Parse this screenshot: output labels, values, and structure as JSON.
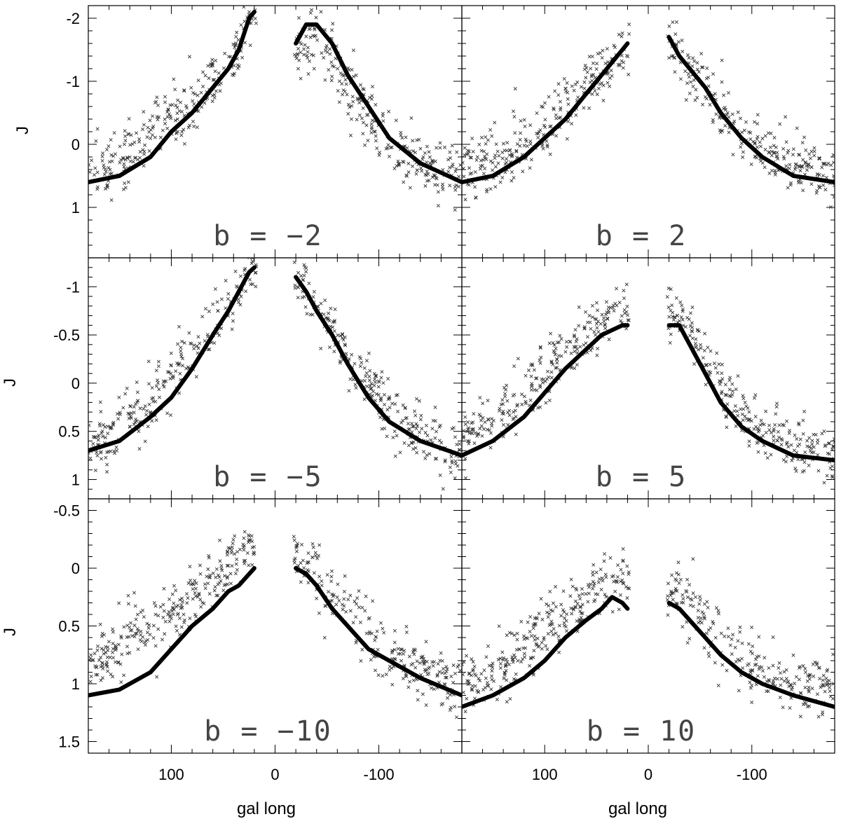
{
  "chart_data": {
    "type": "scatter",
    "xlabel": "gal long",
    "ylabel": "J",
    "x_ticks": [
      "100",
      "0",
      "-100"
    ],
    "xlim": [
      180,
      -180
    ],
    "x_axis": "reversed (galactic longitude decreasing to the right)",
    "y_axis": "inverted (J increases downward)",
    "layout": "3 rows x 2 columns, shared axes",
    "panels": [
      {
        "label": "b = −2",
        "ylim": [
          1.8,
          -2.2
        ],
        "y_ticks": [
          "-2",
          "-1",
          "0",
          "1"
        ],
        "y_tick_values": [
          -2,
          -1,
          0,
          1
        ],
        "model_left": {
          "x": [
            180,
            150,
            120,
            100,
            80,
            60,
            45,
            35,
            25,
            20
          ],
          "y": [
            0.6,
            0.5,
            0.2,
            -0.2,
            -0.5,
            -0.9,
            -1.2,
            -1.5,
            -2.0,
            -2.1
          ]
        },
        "model_right": {
          "x": [
            -20,
            -30,
            -40,
            -55,
            -70,
            -90,
            -110,
            -140,
            -180
          ],
          "y": [
            -1.6,
            -1.9,
            -1.9,
            -1.6,
            -1.1,
            -0.6,
            -0.1,
            0.3,
            0.6
          ]
        },
        "scatter_center": {
          "x": [
            180,
            150,
            120,
            100,
            80,
            60,
            45,
            35,
            25,
            -25,
            -40,
            -55,
            -70,
            -90,
            -110,
            -140,
            -180
          ],
          "y": [
            0.4,
            0.3,
            -0.1,
            -0.4,
            -0.6,
            -1.0,
            -1.3,
            -1.6,
            -2.0,
            -1.5,
            -1.8,
            -1.4,
            -1.0,
            -0.5,
            0.0,
            0.3,
            0.5
          ]
        }
      },
      {
        "label": "b = 2",
        "ylim": [
          1.8,
          -2.2
        ],
        "y_ticks": [
          "-2",
          "-1",
          "0",
          "1"
        ],
        "y_tick_values": [
          -2,
          -1,
          0,
          1
        ],
        "model_left": {
          "x": [
            180,
            150,
            120,
            100,
            80,
            60,
            45,
            35,
            25,
            20
          ],
          "y": [
            0.6,
            0.5,
            0.2,
            -0.1,
            -0.4,
            -0.8,
            -1.1,
            -1.3,
            -1.5,
            -1.6
          ]
        },
        "model_right": {
          "x": [
            -20,
            -30,
            -40,
            -55,
            -70,
            -90,
            -110,
            -140,
            -180
          ],
          "y": [
            -1.7,
            -1.4,
            -1.2,
            -0.9,
            -0.5,
            -0.1,
            0.2,
            0.5,
            0.6
          ]
        },
        "scatter_center": {
          "x": [
            180,
            150,
            120,
            100,
            80,
            60,
            45,
            35,
            25,
            -25,
            -40,
            -55,
            -70,
            -90,
            -110,
            -140,
            -180
          ],
          "y": [
            0.4,
            0.3,
            0.0,
            -0.3,
            -0.6,
            -0.9,
            -1.1,
            -1.3,
            -1.5,
            -1.5,
            -1.2,
            -1.0,
            -0.6,
            -0.2,
            0.1,
            0.3,
            0.5
          ]
        }
      },
      {
        "label": "b = −5",
        "ylim": [
          1.2,
          -1.3
        ],
        "y_ticks": [
          "-1",
          "-0.5",
          "0",
          "0.5",
          "1"
        ],
        "y_tick_values": [
          -1,
          -0.5,
          0,
          0.5,
          1
        ],
        "model_left": {
          "x": [
            180,
            150,
            120,
            100,
            80,
            60,
            45,
            35,
            25,
            20
          ],
          "y": [
            0.7,
            0.6,
            0.35,
            0.15,
            -0.15,
            -0.5,
            -0.75,
            -0.95,
            -1.15,
            -1.2
          ]
        },
        "model_right": {
          "x": [
            -20,
            -30,
            -40,
            -55,
            -70,
            -90,
            -110,
            -140,
            -180
          ],
          "y": [
            -1.1,
            -0.95,
            -0.75,
            -0.5,
            -0.2,
            0.15,
            0.4,
            0.6,
            0.75
          ]
        },
        "scatter_center": {
          "x": [
            180,
            150,
            120,
            100,
            80,
            60,
            45,
            35,
            25,
            -25,
            -40,
            -55,
            -70,
            -90,
            -110,
            -140,
            -180
          ],
          "y": [
            0.65,
            0.45,
            0.2,
            -0.05,
            -0.35,
            -0.6,
            -0.85,
            -1.0,
            -1.2,
            -1.05,
            -0.8,
            -0.6,
            -0.3,
            0.0,
            0.3,
            0.55,
            0.75
          ]
        }
      },
      {
        "label": "b = 5",
        "ylim": [
          1.2,
          -1.3
        ],
        "y_ticks": [
          "-1",
          "-0.5",
          "0",
          "0.5",
          "1"
        ],
        "y_tick_values": [
          -1,
          -0.5,
          0,
          0.5,
          1
        ],
        "model_left": {
          "x": [
            180,
            150,
            120,
            100,
            80,
            60,
            45,
            35,
            25,
            20
          ],
          "y": [
            0.75,
            0.6,
            0.35,
            0.1,
            -0.15,
            -0.35,
            -0.5,
            -0.55,
            -0.6,
            -0.6
          ]
        },
        "model_right": {
          "x": [
            -20,
            -30,
            -40,
            -55,
            -70,
            -90,
            -110,
            -140,
            -180
          ],
          "y": [
            -0.6,
            -0.6,
            -0.4,
            -0.1,
            0.2,
            0.45,
            0.6,
            0.75,
            0.8
          ]
        },
        "scatter_center": {
          "x": [
            180,
            150,
            120,
            100,
            80,
            60,
            45,
            35,
            25,
            -25,
            -40,
            -55,
            -70,
            -90,
            -110,
            -140,
            -180
          ],
          "y": [
            0.6,
            0.4,
            0.15,
            -0.1,
            -0.3,
            -0.5,
            -0.65,
            -0.7,
            -0.7,
            -0.7,
            -0.55,
            -0.3,
            0.0,
            0.3,
            0.5,
            0.65,
            0.75
          ]
        }
      },
      {
        "label": "b = −10",
        "ylim": [
          1.6,
          -0.6
        ],
        "y_ticks": [
          "-0.5",
          "0",
          "0.5",
          "1",
          "1.5"
        ],
        "y_tick_values": [
          -0.5,
          0,
          0.5,
          1,
          1.5
        ],
        "model_left": {
          "x": [
            180,
            150,
            120,
            100,
            80,
            60,
            45,
            35,
            25,
            20
          ],
          "y": [
            1.1,
            1.05,
            0.9,
            0.7,
            0.5,
            0.35,
            0.2,
            0.15,
            0.05,
            0.0
          ]
        },
        "model_right": {
          "x": [
            -20,
            -30,
            -40,
            -55,
            -70,
            -90,
            -110,
            -140,
            -180
          ],
          "y": [
            0.0,
            0.05,
            0.15,
            0.35,
            0.5,
            0.7,
            0.8,
            0.95,
            1.1
          ]
        },
        "scatter_center": {
          "x": [
            180,
            150,
            120,
            100,
            80,
            60,
            45,
            35,
            25,
            -25,
            -40,
            -55,
            -70,
            -90,
            -110,
            -140,
            -180
          ],
          "y": [
            0.9,
            0.7,
            0.5,
            0.4,
            0.25,
            0.1,
            0.0,
            -0.1,
            -0.2,
            -0.1,
            0.05,
            0.2,
            0.35,
            0.55,
            0.7,
            0.9,
            1.05
          ]
        }
      },
      {
        "label": "b = 10",
        "ylim": [
          1.6,
          -0.6
        ],
        "y_ticks": [
          "-0.5",
          "0",
          "0.5",
          "1",
          "1.5"
        ],
        "y_tick_values": [
          -0.5,
          0,
          0.5,
          1,
          1.5
        ],
        "model_left": {
          "x": [
            180,
            150,
            120,
            100,
            80,
            60,
            45,
            35,
            25,
            20
          ],
          "y": [
            1.2,
            1.1,
            0.95,
            0.8,
            0.6,
            0.45,
            0.35,
            0.25,
            0.3,
            0.35
          ]
        },
        "model_right": {
          "x": [
            -20,
            -30,
            -40,
            -55,
            -70,
            -90,
            -110,
            -140,
            -180
          ],
          "y": [
            0.3,
            0.35,
            0.45,
            0.6,
            0.75,
            0.9,
            1.0,
            1.1,
            1.2
          ]
        },
        "scatter_center": {
          "x": [
            180,
            150,
            120,
            100,
            80,
            60,
            45,
            35,
            25,
            -25,
            -40,
            -55,
            -70,
            -90,
            -110,
            -140,
            -180
          ],
          "y": [
            1.0,
            0.9,
            0.7,
            0.55,
            0.4,
            0.25,
            0.15,
            0.1,
            0.1,
            0.2,
            0.3,
            0.45,
            0.6,
            0.75,
            0.9,
            1.0,
            1.05
          ]
        }
      }
    ],
    "colors": {
      "model": "#000000",
      "scatter": "#333333",
      "axes": "#000000",
      "label": "#444444"
    },
    "grid": false
  }
}
